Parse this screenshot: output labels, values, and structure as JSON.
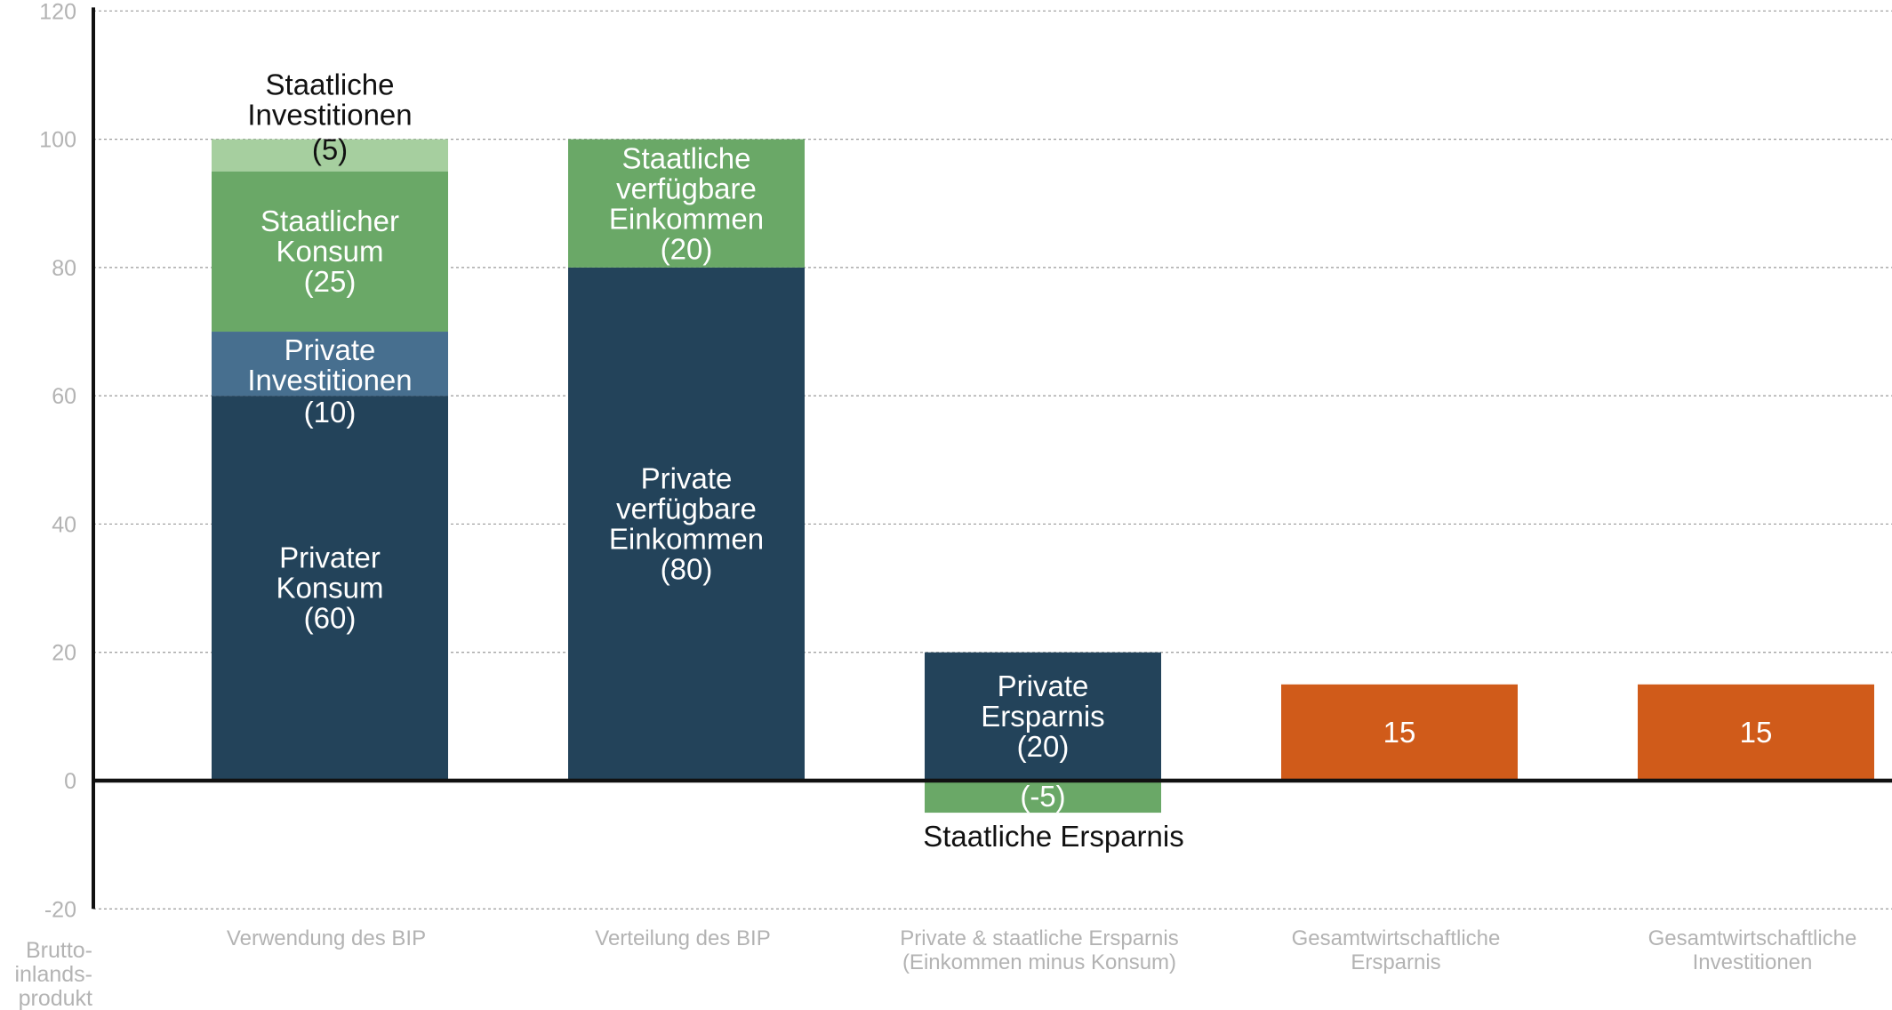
{
  "chart_data": {
    "type": "bar",
    "stacked": true,
    "ylabel": [
      "Brutto-",
      "inlands-",
      "produkt"
    ],
    "ylim": [
      -20,
      120
    ],
    "yticks": [
      -20,
      0,
      20,
      40,
      60,
      80,
      100,
      120
    ],
    "grid": true,
    "categories": [
      [
        "Verwendung des BIP"
      ],
      [
        "Verteilung des BIP"
      ],
      [
        "Private & staatliche Ersparnis",
        "(Einkommen minus Konsum)"
      ],
      [
        "Gesamtwirtschaftliche",
        "Ersparnis"
      ],
      [
        "Gesamtwirtschaftliche",
        "Investitionen"
      ]
    ],
    "series": [
      {
        "category": 0,
        "label": [
          "Privater",
          "Konsum",
          "(60)"
        ],
        "value": 60,
        "color": "#23435a",
        "text_color": "#ffffff"
      },
      {
        "category": 0,
        "label": [
          "Private",
          "Investitionen",
          "(10)"
        ],
        "value": 10,
        "color": "#476f8f",
        "text_color": "#ffffff"
      },
      {
        "category": 0,
        "label": [
          "Staatlicher",
          "Konsum",
          "(25)"
        ],
        "value": 25,
        "color": "#6aa867",
        "text_color": "#ffffff"
      },
      {
        "category": 0,
        "label": [
          "Staatliche",
          "Investitionen",
          "(5)"
        ],
        "value": 5,
        "color": "#a6cf9f",
        "text_color": "#111111"
      },
      {
        "category": 1,
        "label": [
          "Private",
          "verfügbare",
          "Einkommen",
          "(80)"
        ],
        "value": 80,
        "color": "#23435a",
        "text_color": "#ffffff"
      },
      {
        "category": 1,
        "label": [
          "Staatliche",
          "verfügbare",
          "Einkommen",
          "(20)"
        ],
        "value": 20,
        "color": "#6aa867",
        "text_color": "#ffffff"
      },
      {
        "category": 2,
        "label": [
          "Private",
          "Ersparnis",
          "(20)"
        ],
        "value": 20,
        "color": "#23435a",
        "text_color": "#ffffff"
      },
      {
        "category": 2,
        "label": [
          "(-5)",
          "Staatliche Ersparnis"
        ],
        "value": -5,
        "color": "#6aa867",
        "text_color": "#ffffff"
      },
      {
        "category": 3,
        "label": [
          "15"
        ],
        "value": 15,
        "color": "#d05b1a",
        "text_color": "#ffffff"
      },
      {
        "category": 4,
        "label": [
          "15"
        ],
        "value": 15,
        "color": "#d05b1a",
        "text_color": "#ffffff"
      }
    ]
  }
}
